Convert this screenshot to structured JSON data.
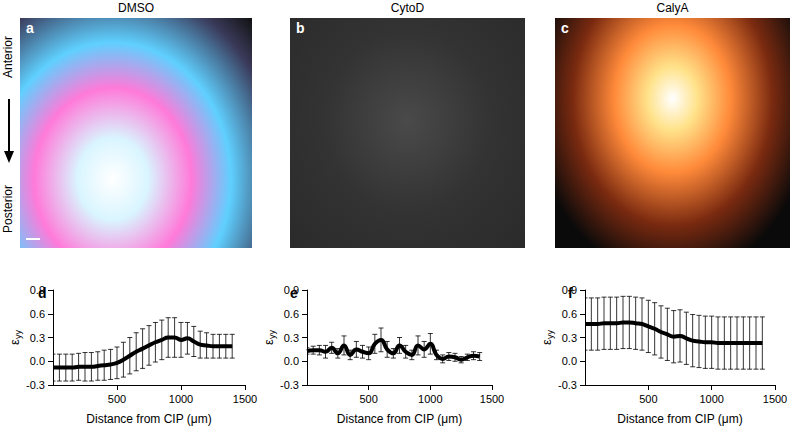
{
  "figure": {
    "panels": [
      {
        "panel": "a",
        "title": "DMSO"
      },
      {
        "panel": "b",
        "title": "CytoD"
      },
      {
        "panel": "c",
        "title": "CalyA"
      }
    ],
    "anterior": "Anterior",
    "posterior": "Posterior"
  },
  "chart_data": [
    {
      "type": "line",
      "panel": "d",
      "ylabel": {
        "main": "ε",
        "sub": "yy"
      },
      "xlabel": "Distance from CIP (μm)",
      "x": [
        0,
        50,
        100,
        150,
        200,
        250,
        300,
        350,
        400,
        450,
        500,
        550,
        600,
        650,
        700,
        750,
        800,
        850,
        900,
        950,
        1000,
        1050,
        1100,
        1150,
        1200,
        1250,
        1300,
        1350,
        1400
      ],
      "series": [
        {
          "color": "#000000",
          "values": [
            -0.08,
            -0.08,
            -0.08,
            -0.08,
            -0.07,
            -0.07,
            -0.07,
            -0.06,
            -0.05,
            -0.04,
            -0.02,
            0.02,
            0.07,
            0.12,
            0.16,
            0.2,
            0.24,
            0.27,
            0.3,
            0.3,
            0.27,
            0.29,
            0.25,
            0.21,
            0.2,
            0.19,
            0.19,
            0.19,
            0.19
          ],
          "errors": [
            0.17,
            0.17,
            0.17,
            0.17,
            0.17,
            0.18,
            0.18,
            0.18,
            0.19,
            0.19,
            0.2,
            0.22,
            0.23,
            0.24,
            0.25,
            0.25,
            0.25,
            0.25,
            0.25,
            0.25,
            0.22,
            0.2,
            0.19,
            0.17,
            0.16,
            0.15,
            0.15,
            0.15,
            0.15
          ]
        }
      ],
      "xlim": [
        0,
        1500
      ],
      "xticks": [
        500,
        1000,
        1500
      ],
      "ylim": [
        -0.3,
        0.9
      ],
      "yticks": [
        -0.3,
        {
          "value": 0,
          "label": "0.0"
        },
        0.3,
        0.6,
        0.9
      ],
      "grid": false
    },
    {
      "type": "line",
      "panel": "e",
      "ylabel": {
        "main": "ε",
        "sub": "yy"
      },
      "xlabel": "Distance from CIP (μm)",
      "x": [
        0,
        50,
        100,
        150,
        200,
        250,
        300,
        350,
        400,
        450,
        500,
        550,
        600,
        650,
        700,
        750,
        800,
        850,
        900,
        950,
        1000,
        1050,
        1100,
        1150,
        1200,
        1250,
        1300,
        1350,
        1400
      ],
      "series": [
        {
          "color": "#000000",
          "values": [
            0.13,
            0.14,
            0.14,
            0.12,
            0.17,
            0.1,
            0.2,
            0.08,
            0.15,
            0.12,
            0.1,
            0.22,
            0.27,
            0.15,
            0.1,
            0.2,
            0.12,
            0.08,
            0.2,
            0.15,
            0.22,
            0.08,
            0.03,
            0.06,
            0.05,
            0.02,
            0.05,
            0.07,
            0.06
          ],
          "errors": [
            0.04,
            0.05,
            0.06,
            0.08,
            0.07,
            0.06,
            0.12,
            0.06,
            0.1,
            0.08,
            0.08,
            0.12,
            0.15,
            0.1,
            0.06,
            0.1,
            0.08,
            0.06,
            0.12,
            0.1,
            0.13,
            0.06,
            0.05,
            0.05,
            0.05,
            0.04,
            0.04,
            0.05,
            0.05
          ]
        }
      ],
      "xlim": [
        0,
        1500
      ],
      "xticks": [
        500,
        1000,
        1500
      ],
      "ylim": [
        -0.3,
        0.9
      ],
      "yticks": [
        -0.3,
        {
          "value": 0,
          "label": "0.0"
        },
        0.3,
        0.6,
        0.9
      ],
      "grid": false
    },
    {
      "type": "line",
      "panel": "f",
      "ylabel": {
        "main": "ε",
        "sub": "yy"
      },
      "xlabel": "Distance from CIP (μm)",
      "x": [
        0,
        50,
        100,
        150,
        200,
        250,
        300,
        350,
        400,
        450,
        500,
        550,
        600,
        650,
        700,
        750,
        800,
        850,
        900,
        950,
        1000,
        1050,
        1100,
        1150,
        1200,
        1250,
        1300,
        1350,
        1400
      ],
      "series": [
        {
          "color": "#000000",
          "values": [
            0.47,
            0.47,
            0.47,
            0.48,
            0.48,
            0.48,
            0.49,
            0.49,
            0.48,
            0.47,
            0.44,
            0.41,
            0.37,
            0.34,
            0.31,
            0.32,
            0.29,
            0.26,
            0.25,
            0.24,
            0.24,
            0.23,
            0.23,
            0.23,
            0.23,
            0.23,
            0.23,
            0.23,
            0.23
          ],
          "errors": [
            0.33,
            0.33,
            0.33,
            0.33,
            0.33,
            0.33,
            0.33,
            0.33,
            0.33,
            0.33,
            0.33,
            0.33,
            0.33,
            0.33,
            0.33,
            0.33,
            0.33,
            0.33,
            0.33,
            0.33,
            0.33,
            0.33,
            0.33,
            0.33,
            0.33,
            0.33,
            0.33,
            0.33,
            0.33
          ]
        }
      ],
      "xlim": [
        0,
        1500
      ],
      "xticks": [
        500,
        1000,
        1500
      ],
      "ylim": [
        -0.3,
        0.9
      ],
      "yticks": [
        -0.3,
        {
          "value": 0,
          "label": "0.0"
        },
        0.3,
        0.6,
        0.9
      ],
      "grid": false
    }
  ]
}
